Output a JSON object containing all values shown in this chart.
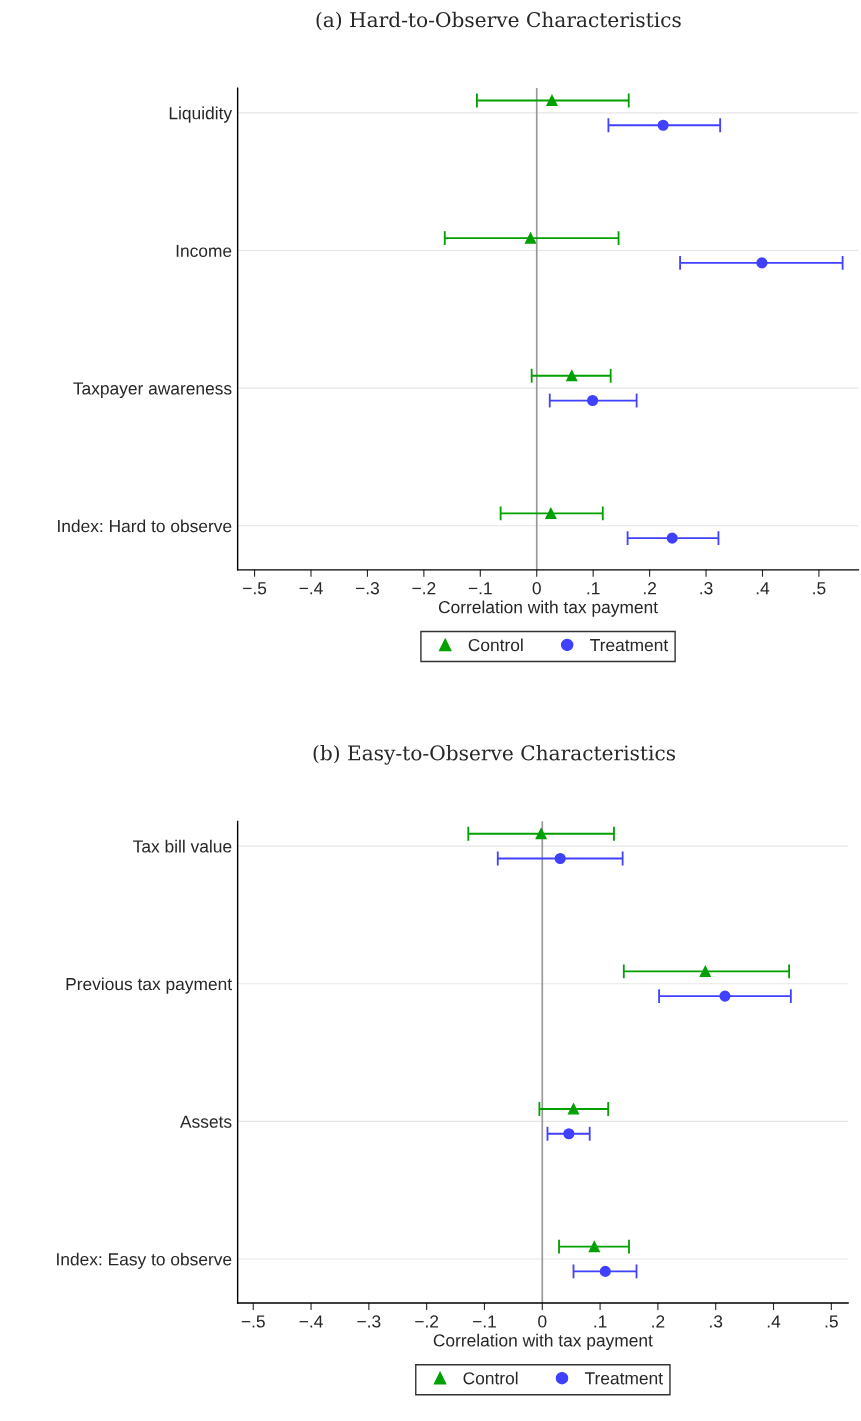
{
  "chart_data": [
    {
      "type": "scatter",
      "orientation": "horizontal",
      "title": "(a) Hard-to-Observe Characteristics",
      "xlabel": "Correlation with tax payment",
      "categories": [
        "Liquidity",
        "Income",
        "Taxpayer awareness",
        "Index: Hard to observe"
      ],
      "series": [
        {
          "name": "Control",
          "color": "#00a000",
          "marker": "triangle",
          "values": [
            0.027,
            -0.011,
            0.062,
            0.025
          ],
          "errors": [
            [
              -0.106,
              0.163
            ],
            [
              -0.163,
              0.145
            ],
            [
              -0.009,
              0.131
            ],
            [
              -0.064,
              0.117
            ]
          ]
        },
        {
          "name": "Treatment",
          "color": "#4040ff",
          "marker": "circle",
          "values": [
            0.224,
            0.399,
            0.099,
            0.24
          ],
          "errors": [
            [
              0.127,
              0.325
            ],
            [
              0.254,
              0.542
            ],
            [
              0.023,
              0.177
            ],
            [
              0.161,
              0.322
            ]
          ]
        }
      ],
      "xlim": [
        -0.53,
        0.57
      ],
      "xticks": [
        {
          "value": -0.5,
          "label": "−.5"
        },
        {
          "value": -0.4,
          "label": "−.4"
        },
        {
          "value": -0.3,
          "label": "−.3"
        },
        {
          "value": -0.2,
          "label": "−.2"
        },
        {
          "value": -0.1,
          "label": "−.1"
        },
        0,
        {
          "value": 0.1,
          "label": ".1"
        },
        {
          "value": 0.2,
          "label": ".2"
        },
        {
          "value": 0.3,
          "label": ".3"
        },
        {
          "value": 0.4,
          "label": ".4"
        },
        {
          "value": 0.5,
          "label": ".5"
        }
      ],
      "ref_lines": [
        {
          "axis": "x",
          "value": 0,
          "color": "#999999"
        }
      ],
      "grid": "y",
      "legend": "bottom"
    },
    {
      "type": "scatter",
      "orientation": "horizontal",
      "title": "(b) Easy-to-Observe Characteristics",
      "xlabel": "Correlation with tax payment",
      "categories": [
        "Tax bill value",
        "Previous tax payment",
        "Assets",
        "Index: Easy to observe"
      ],
      "series": [
        {
          "name": "Control",
          "color": "#00a000",
          "marker": "triangle",
          "values": [
            -0.002,
            0.282,
            0.054,
            0.09
          ],
          "errors": [
            [
              -0.128,
              0.124
            ],
            [
              0.141,
              0.427
            ],
            [
              -0.005,
              0.114
            ],
            [
              0.029,
              0.15
            ]
          ]
        },
        {
          "name": "Treatment",
          "color": "#4040ff",
          "marker": "circle",
          "values": [
            0.031,
            0.316,
            0.046,
            0.109
          ],
          "errors": [
            [
              -0.077,
              0.139
            ],
            [
              0.202,
              0.43
            ],
            [
              0.009,
              0.082
            ],
            [
              0.054,
              0.163
            ]
          ]
        }
      ],
      "xlim": [
        -0.527,
        0.529
      ],
      "xticks": [
        {
          "value": -0.5,
          "label": "−.5"
        },
        {
          "value": -0.4,
          "label": "−.4"
        },
        {
          "value": -0.3,
          "label": "−.3"
        },
        {
          "value": -0.2,
          "label": "−.2"
        },
        {
          "value": -0.1,
          "label": "−.1"
        },
        0,
        {
          "value": 0.1,
          "label": ".1"
        },
        {
          "value": 0.2,
          "label": ".2"
        },
        {
          "value": 0.3,
          "label": ".3"
        },
        {
          "value": 0.4,
          "label": ".4"
        },
        {
          "value": 0.5,
          "label": ".5"
        }
      ],
      "ref_lines": [
        {
          "axis": "x",
          "value": 0,
          "color": "#999999"
        }
      ],
      "grid": "y",
      "legend": "bottom"
    }
  ]
}
